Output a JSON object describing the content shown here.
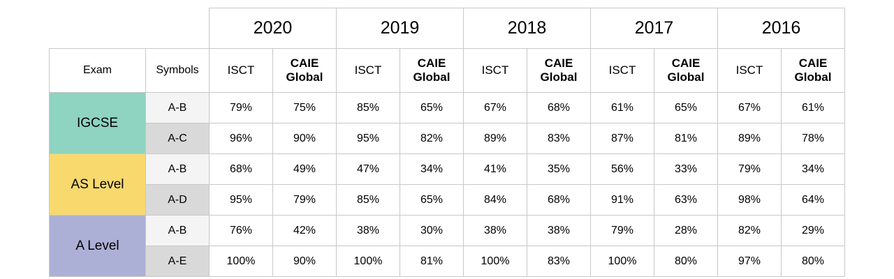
{
  "table": {
    "years": [
      "2020",
      "2019",
      "2018",
      "2017",
      "2016"
    ],
    "headers": {
      "exam": "Exam",
      "symbols": "Symbols",
      "isct": "ISCT",
      "caie_line1": "CAIE",
      "caie_line2": "Global"
    },
    "exams": [
      {
        "name": "IGCSE",
        "rows": [
          {
            "symbol": "A-B",
            "values": [
              [
                "79%",
                "75%"
              ],
              [
                "85%",
                "65%"
              ],
              [
                "67%",
                "68%"
              ],
              [
                "61%",
                "65%"
              ],
              [
                "67%",
                "61%"
              ]
            ]
          },
          {
            "symbol": "A-C",
            "values": [
              [
                "96%",
                "90%"
              ],
              [
                "95%",
                "82%"
              ],
              [
                "89%",
                "83%"
              ],
              [
                "87%",
                "81%"
              ],
              [
                "89%",
                "78%"
              ]
            ]
          }
        ]
      },
      {
        "name": "AS Level",
        "rows": [
          {
            "symbol": "A-B",
            "values": [
              [
                "68%",
                "49%"
              ],
              [
                "47%",
                "34%"
              ],
              [
                "41%",
                "35%"
              ],
              [
                "56%",
                "33%"
              ],
              [
                "79%",
                "34%"
              ]
            ]
          },
          {
            "symbol": "A-D",
            "values": [
              [
                "95%",
                "79%"
              ],
              [
                "85%",
                "65%"
              ],
              [
                "84%",
                "68%"
              ],
              [
                "91%",
                "63%"
              ],
              [
                "98%",
                "64%"
              ]
            ]
          }
        ]
      },
      {
        "name": "A Level",
        "rows": [
          {
            "symbol": "A-B",
            "values": [
              [
                "76%",
                "42%"
              ],
              [
                "38%",
                "30%"
              ],
              [
                "38%",
                "38%"
              ],
              [
                "79%",
                "28%"
              ],
              [
                "82%",
                "29%"
              ]
            ]
          },
          {
            "symbol": "A-E",
            "values": [
              [
                "100%",
                "90%"
              ],
              [
                "100%",
                "81%"
              ],
              [
                "100%",
                "83%"
              ],
              [
                "100%",
                "80%"
              ],
              [
                "97%",
                "80%"
              ]
            ]
          }
        ]
      }
    ],
    "colors": {
      "igcse": "#8fd3c1",
      "as_level": "#f7d96e",
      "a_level": "#adb0d6"
    }
  }
}
